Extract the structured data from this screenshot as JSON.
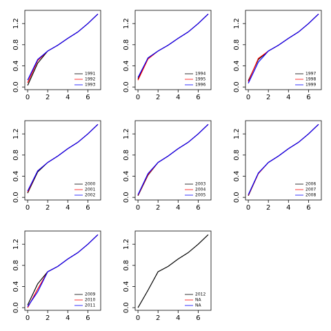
{
  "chart_data": [
    {
      "type": "line",
      "x": [
        0,
        1,
        2,
        3,
        4,
        5,
        6,
        7
      ],
      "xlim": [
        -0.28,
        7.28
      ],
      "ylim": [
        -0.05,
        1.45
      ],
      "xticks": [
        0,
        2,
        4,
        6
      ],
      "yticks": [
        {
          "value": 0,
          "label": "0.0"
        },
        0.4,
        0.8,
        1.2
      ],
      "series": [
        {
          "name": "1991",
          "color": "black",
          "values": [
            0.03,
            0.45,
            0.68,
            0.79,
            0.92,
            1.04,
            1.2,
            1.38
          ]
        },
        {
          "name": "1992",
          "color": "red",
          "values": [
            0.08,
            0.5,
            0.68,
            0.79,
            0.92,
            1.04,
            1.2,
            1.38
          ]
        },
        {
          "name": "1993",
          "color": "blue",
          "values": [
            0.13,
            0.52,
            0.68,
            0.79,
            0.92,
            1.04,
            1.2,
            1.38
          ]
        }
      ]
    },
    {
      "type": "line",
      "x": [
        0,
        1,
        2,
        3,
        4,
        5,
        6,
        7
      ],
      "xlim": [
        -0.28,
        7.28
      ],
      "ylim": [
        -0.05,
        1.45
      ],
      "xticks": [
        0,
        2,
        4,
        6
      ],
      "yticks": [
        {
          "value": 0,
          "label": "0.0"
        },
        0.4,
        0.8,
        1.2
      ],
      "series": [
        {
          "name": "1994",
          "color": "black",
          "values": [
            0.15,
            0.55,
            0.68,
            0.79,
            0.92,
            1.04,
            1.2,
            1.38
          ]
        },
        {
          "name": "1995",
          "color": "red",
          "values": [
            0.13,
            0.53,
            0.68,
            0.79,
            0.92,
            1.04,
            1.2,
            1.38
          ]
        },
        {
          "name": "1996",
          "color": "blue",
          "values": [
            0.18,
            0.55,
            0.68,
            0.79,
            0.92,
            1.04,
            1.2,
            1.38
          ]
        }
      ]
    },
    {
      "type": "line",
      "x": [
        0,
        1,
        2,
        3,
        4,
        5,
        6,
        7
      ],
      "xlim": [
        -0.28,
        7.28
      ],
      "ylim": [
        -0.05,
        1.45
      ],
      "xticks": [
        0,
        2,
        4,
        6
      ],
      "yticks": [
        {
          "value": 0,
          "label": "0.0"
        },
        0.4,
        0.8,
        1.2
      ],
      "series": [
        {
          "name": "1997",
          "color": "black",
          "values": [
            0.12,
            0.52,
            0.68,
            0.79,
            0.92,
            1.04,
            1.2,
            1.38
          ]
        },
        {
          "name": "1998",
          "color": "red",
          "values": [
            0.1,
            0.54,
            0.68,
            0.79,
            0.92,
            1.04,
            1.2,
            1.38
          ]
        },
        {
          "name": "1999",
          "color": "blue",
          "values": [
            0.07,
            0.47,
            0.68,
            0.79,
            0.92,
            1.04,
            1.2,
            1.38
          ]
        }
      ]
    },
    {
      "type": "line",
      "x": [
        0,
        1,
        2,
        3,
        4,
        5,
        6,
        7
      ],
      "xlim": [
        -0.28,
        7.28
      ],
      "ylim": [
        -0.05,
        1.45
      ],
      "xticks": [
        0,
        2,
        4,
        6
      ],
      "yticks": [
        {
          "value": 0,
          "label": "0.0"
        },
        0.4,
        0.8,
        1.2
      ],
      "series": [
        {
          "name": "2000",
          "color": "black",
          "values": [
            0.08,
            0.48,
            0.66,
            0.78,
            0.92,
            1.04,
            1.2,
            1.38
          ]
        },
        {
          "name": "2001",
          "color": "red",
          "values": [
            0.1,
            0.5,
            0.66,
            0.78,
            0.92,
            1.04,
            1.2,
            1.38
          ]
        },
        {
          "name": "2002",
          "color": "blue",
          "values": [
            0.12,
            0.5,
            0.66,
            0.78,
            0.92,
            1.04,
            1.2,
            1.38
          ]
        }
      ]
    },
    {
      "type": "line",
      "x": [
        0,
        1,
        2,
        3,
        4,
        5,
        6,
        7
      ],
      "xlim": [
        -0.28,
        7.28
      ],
      "ylim": [
        -0.05,
        1.45
      ],
      "xticks": [
        0,
        2,
        4,
        6
      ],
      "yticks": [
        {
          "value": 0,
          "label": "0.0"
        },
        0.4,
        0.8,
        1.2
      ],
      "series": [
        {
          "name": "2003",
          "color": "black",
          "values": [
            0.03,
            0.42,
            0.66,
            0.78,
            0.92,
            1.04,
            1.2,
            1.38
          ]
        },
        {
          "name": "2004",
          "color": "red",
          "values": [
            0.04,
            0.43,
            0.66,
            0.78,
            0.92,
            1.04,
            1.2,
            1.38
          ]
        },
        {
          "name": "2005",
          "color": "blue",
          "values": [
            0.05,
            0.45,
            0.66,
            0.78,
            0.92,
            1.04,
            1.2,
            1.38
          ]
        }
      ]
    },
    {
      "type": "line",
      "x": [
        0,
        1,
        2,
        3,
        4,
        5,
        6,
        7
      ],
      "xlim": [
        -0.28,
        7.28
      ],
      "ylim": [
        -0.05,
        1.45
      ],
      "xticks": [
        0,
        2,
        4,
        6
      ],
      "yticks": [
        {
          "value": 0,
          "label": "0.0"
        },
        0.4,
        0.8,
        1.2
      ],
      "series": [
        {
          "name": "2006",
          "color": "black",
          "values": [
            0.03,
            0.45,
            0.66,
            0.78,
            0.92,
            1.04,
            1.2,
            1.38
          ]
        },
        {
          "name": "2007",
          "color": "red",
          "values": [
            0.04,
            0.45,
            0.66,
            0.78,
            0.92,
            1.04,
            1.2,
            1.38
          ]
        },
        {
          "name": "2008",
          "color": "blue",
          "values": [
            0.05,
            0.46,
            0.66,
            0.78,
            0.92,
            1.04,
            1.2,
            1.38
          ]
        }
      ]
    },
    {
      "type": "line",
      "x": [
        0,
        1,
        2,
        3,
        4,
        5,
        6,
        7
      ],
      "xlim": [
        -0.28,
        7.28
      ],
      "ylim": [
        -0.05,
        1.45
      ],
      "xticks": [
        0,
        2,
        4,
        6
      ],
      "yticks": [
        {
          "value": 0,
          "label": "0.0"
        },
        0.4,
        0.8,
        1.2
      ],
      "series": [
        {
          "name": "2009",
          "color": "black",
          "values": [
            0.05,
            0.45,
            0.68,
            0.78,
            0.92,
            1.04,
            1.2,
            1.38
          ]
        },
        {
          "name": "2010",
          "color": "red",
          "values": [
            0.0,
            0.35,
            0.68,
            0.78,
            0.92,
            1.04,
            1.2,
            1.38
          ]
        },
        {
          "name": "2011",
          "color": "blue",
          "values": [
            0.02,
            0.3,
            0.68,
            0.78,
            0.92,
            1.04,
            1.2,
            1.38
          ]
        }
      ]
    },
    {
      "type": "line",
      "x": [
        0,
        1,
        2,
        3,
        4,
        5,
        6,
        7
      ],
      "xlim": [
        -0.28,
        7.28
      ],
      "ylim": [
        -0.05,
        1.45
      ],
      "xticks": [
        0,
        2,
        4,
        6
      ],
      "yticks": [
        {
          "value": 0,
          "label": "0.0"
        },
        0.4,
        0.8,
        1.2
      ],
      "series": [
        {
          "name": "2012",
          "color": "black",
          "values": [
            0.0,
            0.33,
            0.68,
            0.78,
            0.92,
            1.04,
            1.2,
            1.38
          ]
        },
        {
          "name": "NA",
          "color": "red",
          "values": [
            null,
            null,
            null,
            null,
            null,
            null,
            null,
            null
          ]
        },
        {
          "name": "NA",
          "color": "blue",
          "values": [
            null,
            null,
            null,
            null,
            null,
            null,
            null,
            null
          ]
        }
      ]
    }
  ]
}
